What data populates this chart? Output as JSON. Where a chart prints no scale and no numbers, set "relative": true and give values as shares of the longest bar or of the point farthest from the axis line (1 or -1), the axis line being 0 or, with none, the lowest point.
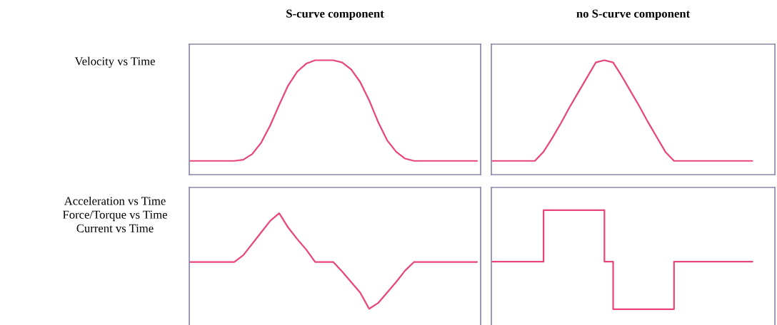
{
  "chart_data": [
    {
      "type": "line",
      "title": "S-curve component",
      "ylabel": "Velocity vs Time",
      "relative": true,
      "categories": [
        null,
        null,
        null,
        null,
        null,
        null,
        null,
        null,
        null,
        null,
        null,
        null,
        null,
        null,
        null,
        null,
        null,
        null,
        null,
        null,
        null,
        null,
        null,
        null,
        null,
        null,
        null,
        null,
        null,
        null,
        null,
        null,
        null
      ],
      "series": [
        {
          "color": "#e8457a",
          "values": [
            0.12,
            0.12,
            0.12,
            0.12,
            0.12,
            0.12,
            0.13,
            0.18,
            0.28,
            0.43,
            0.61,
            0.78,
            0.9,
            0.97,
            1,
            1,
            1,
            0.98,
            0.92,
            0.81,
            0.65,
            0.46,
            0.3,
            0.2,
            0.14,
            0.12,
            0.12,
            0.12,
            0.12,
            0.12,
            0.12,
            0.12,
            0.12
          ]
        }
      ]
    },
    {
      "type": "line",
      "title": "no S-curve component",
      "relative": true,
      "categories": [
        null,
        null,
        null,
        null,
        null,
        null,
        null,
        null,
        null,
        null,
        null,
        null,
        null,
        null,
        null,
        null,
        null,
        null,
        null,
        null,
        null,
        null,
        null,
        null,
        null,
        null,
        null,
        null,
        null,
        null,
        null
      ],
      "series": [
        {
          "color": "#e8457a",
          "values": [
            0.12,
            0.12,
            0.12,
            0.12,
            0.12,
            0.12,
            0.2,
            0.32,
            0.45,
            0.59,
            0.72,
            0.85,
            0.98,
            1,
            0.98,
            0.86,
            0.73,
            0.6,
            0.46,
            0.33,
            0.2,
            0.12,
            0.12,
            0.12,
            0.12,
            0.12,
            0.12,
            0.12,
            0.12,
            0.12,
            0.12
          ]
        }
      ]
    },
    {
      "type": "line",
      "ylabel": "Acceleration vs Time\nForce/Torque vs Time\nCurrent vs Time",
      "relative": true,
      "categories": [
        null,
        null,
        null,
        null,
        null,
        null,
        null,
        null,
        null,
        null,
        null,
        null,
        null,
        null,
        null,
        null,
        null,
        null,
        null,
        null,
        null,
        null,
        null,
        null,
        null,
        null,
        null,
        null,
        null,
        null,
        null,
        null,
        null
      ],
      "series": [
        {
          "color": "#e8457a",
          "values": [
            0.49,
            0.49,
            0.49,
            0.49,
            0.49,
            0.49,
            0.56,
            0.68,
            0.8,
            0.92,
            1,
            0.85,
            0.73,
            0.62,
            0.49,
            0.49,
            0.49,
            0.39,
            0.28,
            0.17,
            0,
            0.06,
            0.17,
            0.28,
            0.4,
            0.49,
            0.49,
            0.49,
            0.49,
            0.49,
            0.49,
            0.49,
            0.49
          ]
        }
      ]
    },
    {
      "type": "step",
      "relative": true,
      "categories": [
        null,
        null,
        null,
        null,
        null,
        null,
        null,
        null,
        null,
        null,
        null,
        null,
        null,
        null,
        null,
        null,
        null,
        null,
        null,
        null,
        null,
        null,
        null,
        null,
        null,
        null,
        null,
        null,
        null,
        null,
        null
      ],
      "series": [
        {
          "color": "#e8457a",
          "values": [
            0.48,
            0.48,
            0.48,
            0.48,
            0.48,
            0.48,
            1,
            1,
            1,
            1,
            1,
            1,
            1,
            0.48,
            0,
            0,
            0,
            0,
            0,
            0,
            0,
            0.48,
            0.48,
            0.48,
            0.48,
            0.48,
            0.48,
            0.48,
            0.48,
            0.48,
            0.48
          ]
        }
      ]
    }
  ]
}
